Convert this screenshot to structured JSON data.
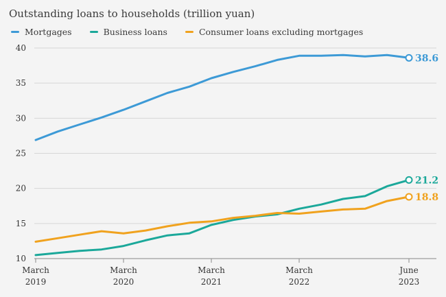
{
  "chart_data": {
    "type": "line",
    "title": "Outstanding loans to households (trillion yuan)",
    "xlabel": "",
    "ylabel": "",
    "ylim": [
      10,
      40
    ],
    "yticks": [
      10,
      15,
      20,
      25,
      30,
      35,
      40
    ],
    "xlim": [
      "2019-03",
      "2023-06"
    ],
    "x_ticks": [
      {
        "date": "2019-03",
        "label": [
          "March",
          "2019"
        ]
      },
      {
        "date": "2020-03",
        "label": [
          "March",
          "2020"
        ]
      },
      {
        "date": "2021-03",
        "label": [
          "March",
          "2021"
        ]
      },
      {
        "date": "2022-03",
        "label": [
          "March",
          "2022"
        ]
      },
      {
        "date": "2023-06",
        "label": [
          "June",
          "2023"
        ]
      }
    ],
    "grid": "horizontal",
    "legend": "top-left",
    "x": [
      "2019-03",
      "2019-06",
      "2019-09",
      "2019-12",
      "2020-03",
      "2020-06",
      "2020-09",
      "2020-12",
      "2021-03",
      "2021-06",
      "2021-09",
      "2021-12",
      "2022-03",
      "2022-06",
      "2022-09",
      "2022-12",
      "2023-03",
      "2023-06"
    ],
    "series": [
      {
        "name": "Mortgages",
        "color": "#3d9ad6",
        "end_label": "38.6",
        "values": [
          26.9,
          28.1,
          29.1,
          30.1,
          31.2,
          32.4,
          33.6,
          34.5,
          35.7,
          36.6,
          37.4,
          38.3,
          38.9,
          38.9,
          39.0,
          38.8,
          39.0,
          38.6
        ]
      },
      {
        "name": "Business loans",
        "color": "#1ba89a",
        "end_label": "21.2",
        "values": [
          10.5,
          10.8,
          11.1,
          11.3,
          11.8,
          12.6,
          13.3,
          13.6,
          14.8,
          15.5,
          16.0,
          16.3,
          17.1,
          17.7,
          18.5,
          18.9,
          20.3,
          21.2
        ]
      },
      {
        "name": "Consumer loans excluding mortgages",
        "color": "#f0a21e",
        "end_label": "18.8",
        "values": [
          12.4,
          12.9,
          13.4,
          13.9,
          13.6,
          14.0,
          14.6,
          15.1,
          15.3,
          15.8,
          16.1,
          16.5,
          16.4,
          16.7,
          17.0,
          17.1,
          18.2,
          18.8
        ]
      }
    ]
  }
}
